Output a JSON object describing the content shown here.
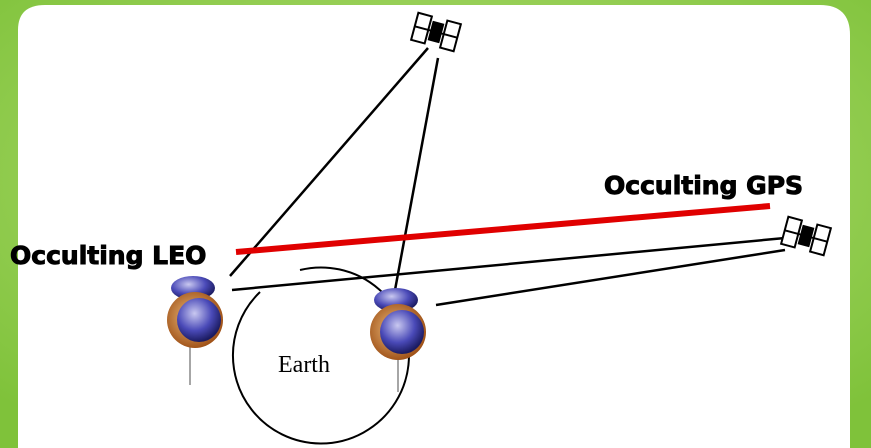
{
  "diagram": {
    "labels": {
      "leo": "Occulting LEO",
      "gps": "Occulting GPS",
      "earth": "Earth"
    }
  }
}
